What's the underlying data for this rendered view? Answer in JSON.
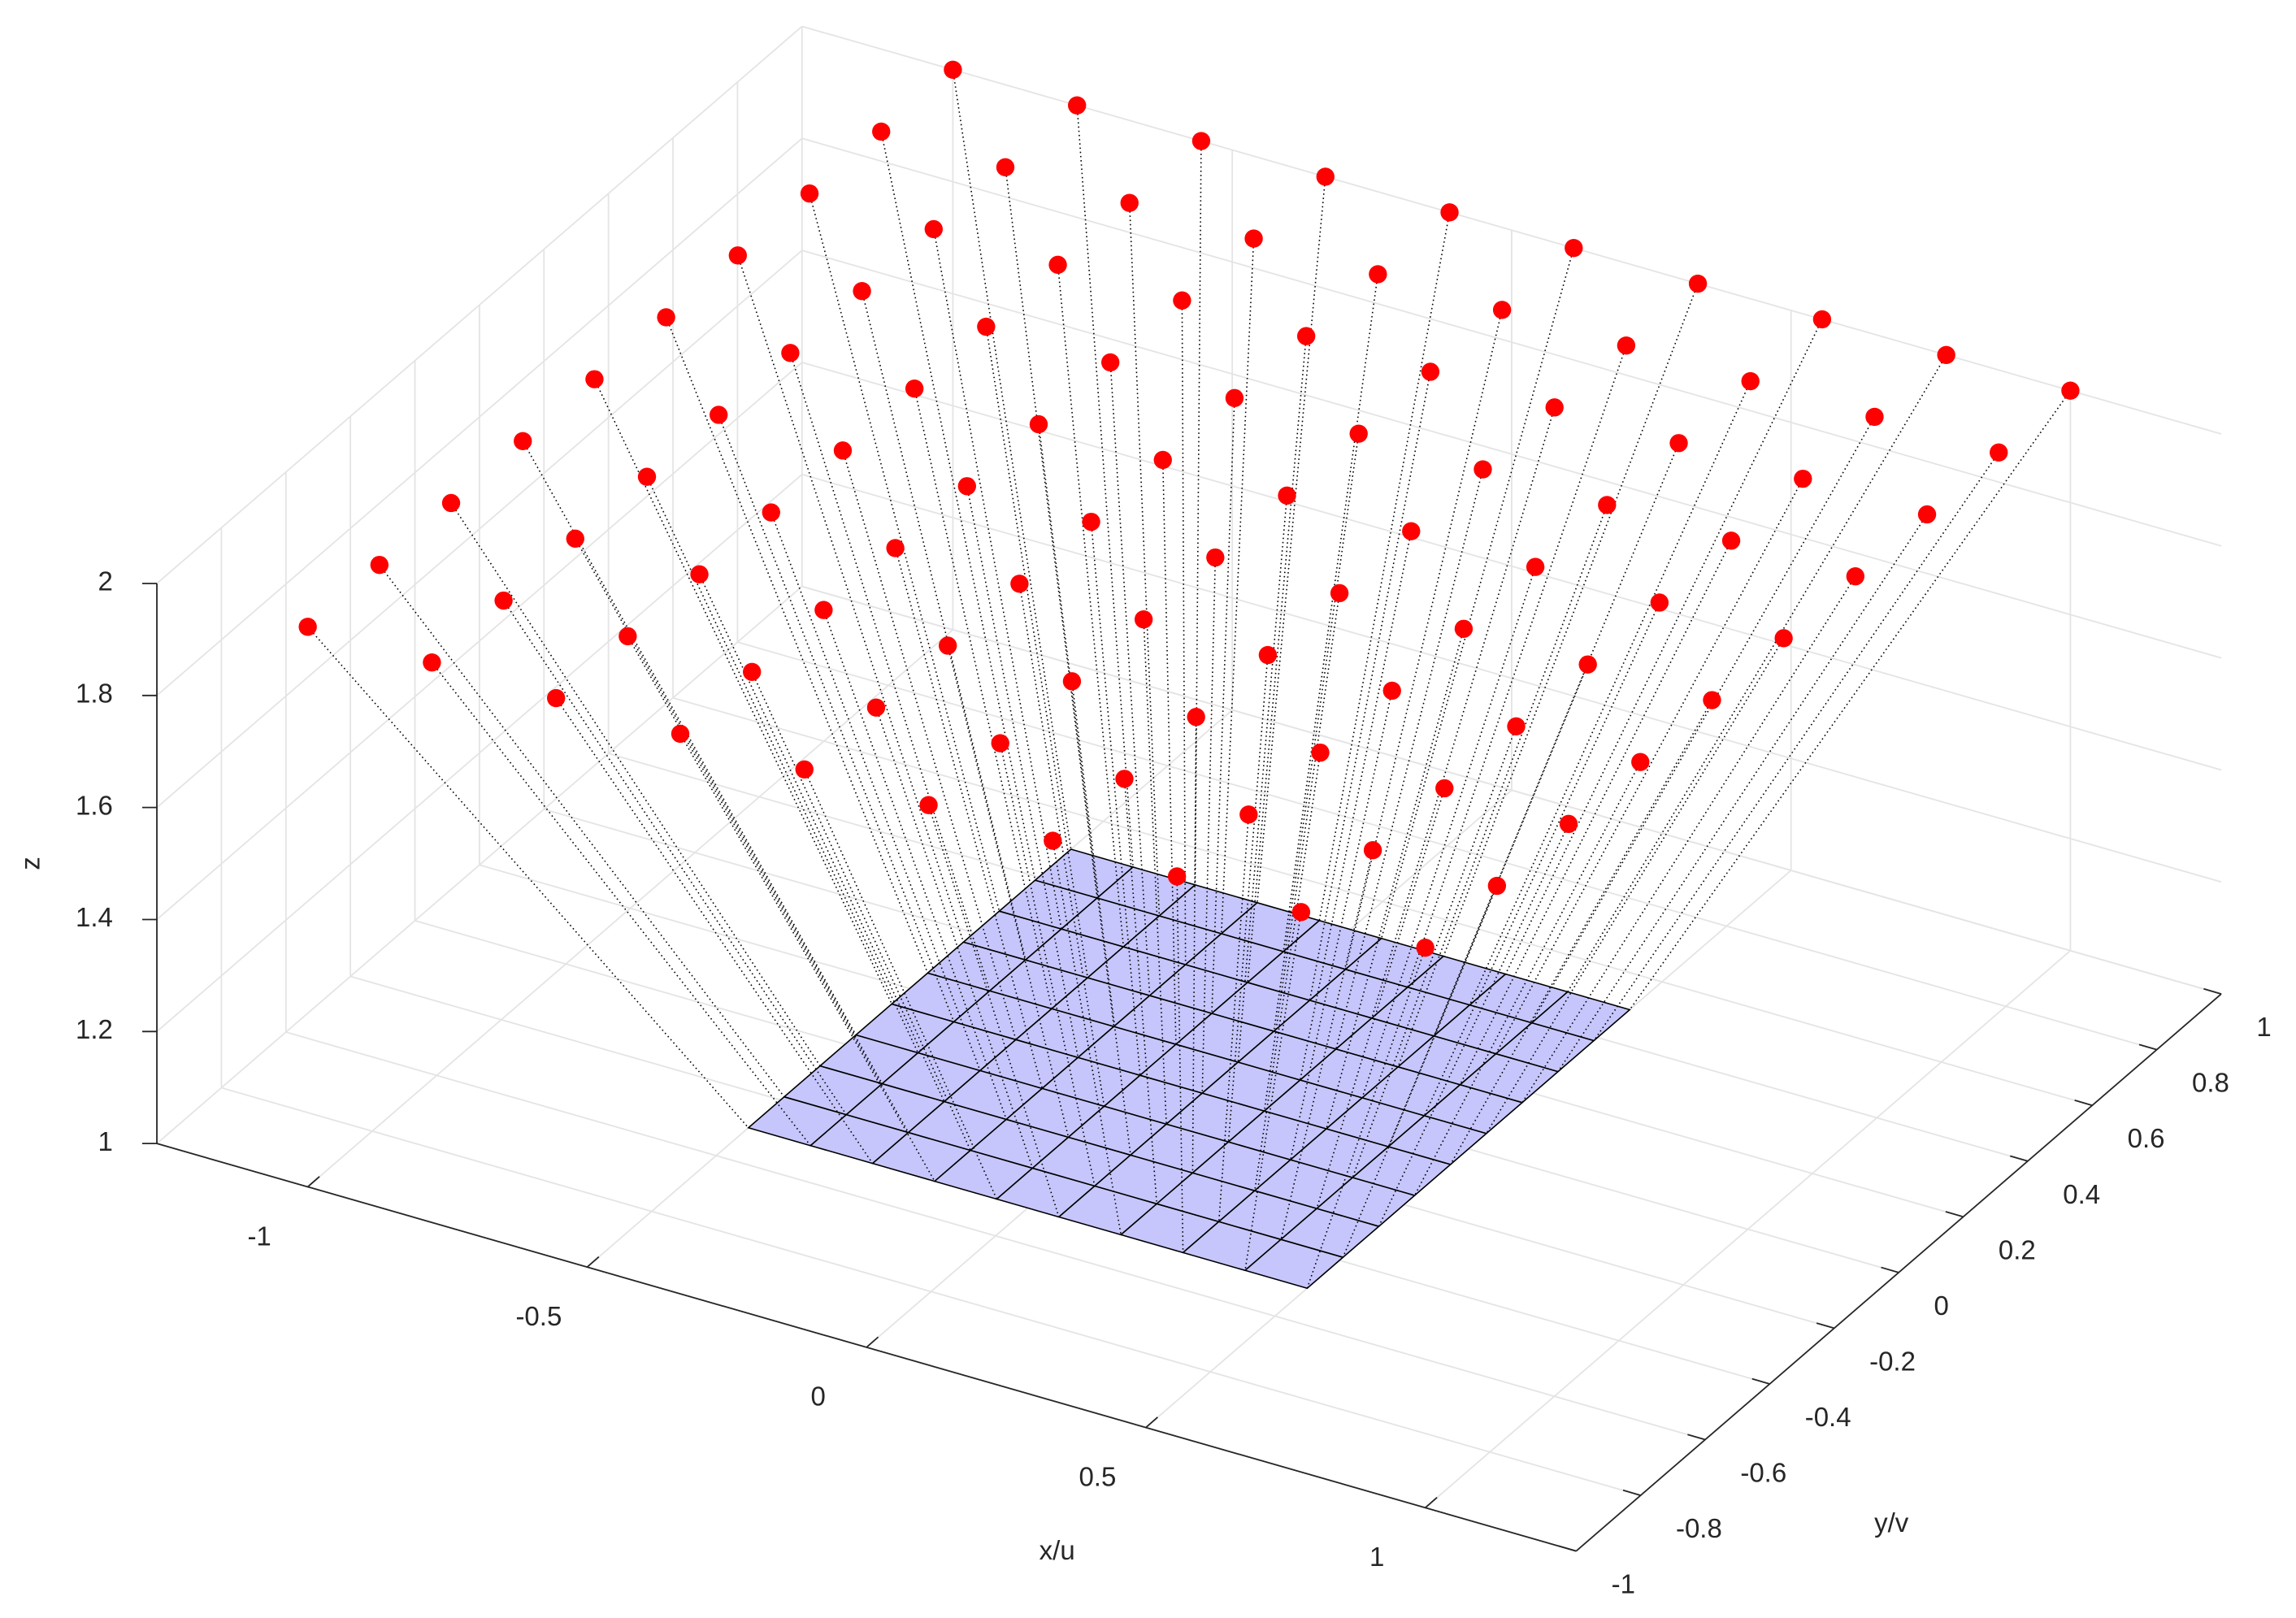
{
  "chart_data": {
    "type": "scatter3",
    "xlabel": "x/u",
    "ylabel": "y/v",
    "zlabel": "z",
    "xlim": [
      -1.27,
      1.27
    ],
    "ylim": [
      -1,
      1
    ],
    "zlim": [
      1,
      2
    ],
    "xticks": [
      -1,
      -0.5,
      0,
      0.5,
      1
    ],
    "yticks": [
      -1,
      -0.8,
      -0.6,
      -0.4,
      -0.2,
      0,
      0.2,
      0.4,
      0.6,
      0.8,
      1
    ],
    "zticks": [
      1,
      1.2,
      1.4,
      1.6,
      1.8,
      2
    ],
    "grid": true,
    "surface": {
      "color": "#c6c6fc",
      "x": [
        -0.5,
        -0.3889,
        -0.2778,
        -0.1667,
        -0.0556,
        0.0556,
        0.1667,
        0.2778,
        0.3889,
        0.5
      ],
      "y": [
        -0.5,
        -0.3889,
        -0.2778,
        -0.1667,
        -0.0556,
        0.0556,
        0.1667,
        0.2778,
        0.3889,
        0.5
      ],
      "z": [
        [
          1,
          1,
          1,
          1,
          1,
          1,
          1,
          1,
          1,
          1
        ],
        [
          1,
          1,
          1,
          1,
          1,
          1,
          1,
          1,
          1,
          1
        ],
        [
          1,
          1,
          1,
          1,
          1,
          1,
          1,
          1,
          1,
          1
        ],
        [
          1,
          1,
          1,
          1,
          1,
          1,
          1,
          1,
          1,
          1
        ],
        [
          1,
          1,
          1,
          1,
          1,
          1,
          1,
          1,
          1,
          1
        ],
        [
          1,
          1,
          1,
          1,
          1,
          1,
          1,
          1,
          1,
          1
        ],
        [
          1,
          1,
          1,
          1,
          1,
          1,
          1,
          1,
          1,
          1
        ],
        [
          1,
          1,
          1,
          1,
          1,
          1,
          1,
          1,
          1,
          1
        ],
        [
          1,
          1,
          1,
          1,
          1,
          1,
          1,
          1,
          1,
          1
        ],
        [
          1,
          1,
          1,
          1,
          1,
          1,
          1,
          1,
          1,
          1
        ]
      ]
    },
    "points": {
      "color": "#ff0000",
      "x": [
        -1,
        -0.7778,
        -0.5556,
        -0.3333,
        -0.1111,
        0.1111,
        0.3333,
        0.5556,
        0.7778,
        1
      ],
      "y": [
        -1,
        -0.7778,
        -0.5556,
        -0.3333,
        -0.1111,
        0.1111,
        0.3333,
        0.5556,
        0.7778,
        1
      ],
      "z": [
        [
          2,
          2,
          2,
          2,
          2,
          2,
          2,
          2,
          2,
          2
        ],
        [
          2,
          2,
          2,
          2,
          2,
          2,
          2,
          2,
          2,
          2
        ],
        [
          2,
          2,
          2,
          2,
          2,
          2,
          2,
          2,
          2,
          2
        ],
        [
          2,
          2,
          2,
          2,
          2,
          2,
          2,
          2,
          2,
          2
        ],
        [
          2,
          2,
          2,
          2,
          2,
          2,
          2,
          2,
          2,
          2
        ],
        [
          2,
          2,
          2,
          2,
          2,
          2,
          2,
          2,
          2,
          2
        ],
        [
          2,
          2,
          2,
          2,
          2,
          2,
          2,
          2,
          2,
          2
        ],
        [
          2,
          2,
          2,
          2,
          2,
          2,
          2,
          2,
          2,
          2
        ],
        [
          2,
          2,
          2,
          2,
          2,
          2,
          2,
          2,
          2,
          2
        ],
        [
          2,
          2,
          2,
          2,
          2,
          2,
          2,
          2,
          2,
          2
        ]
      ]
    }
  }
}
